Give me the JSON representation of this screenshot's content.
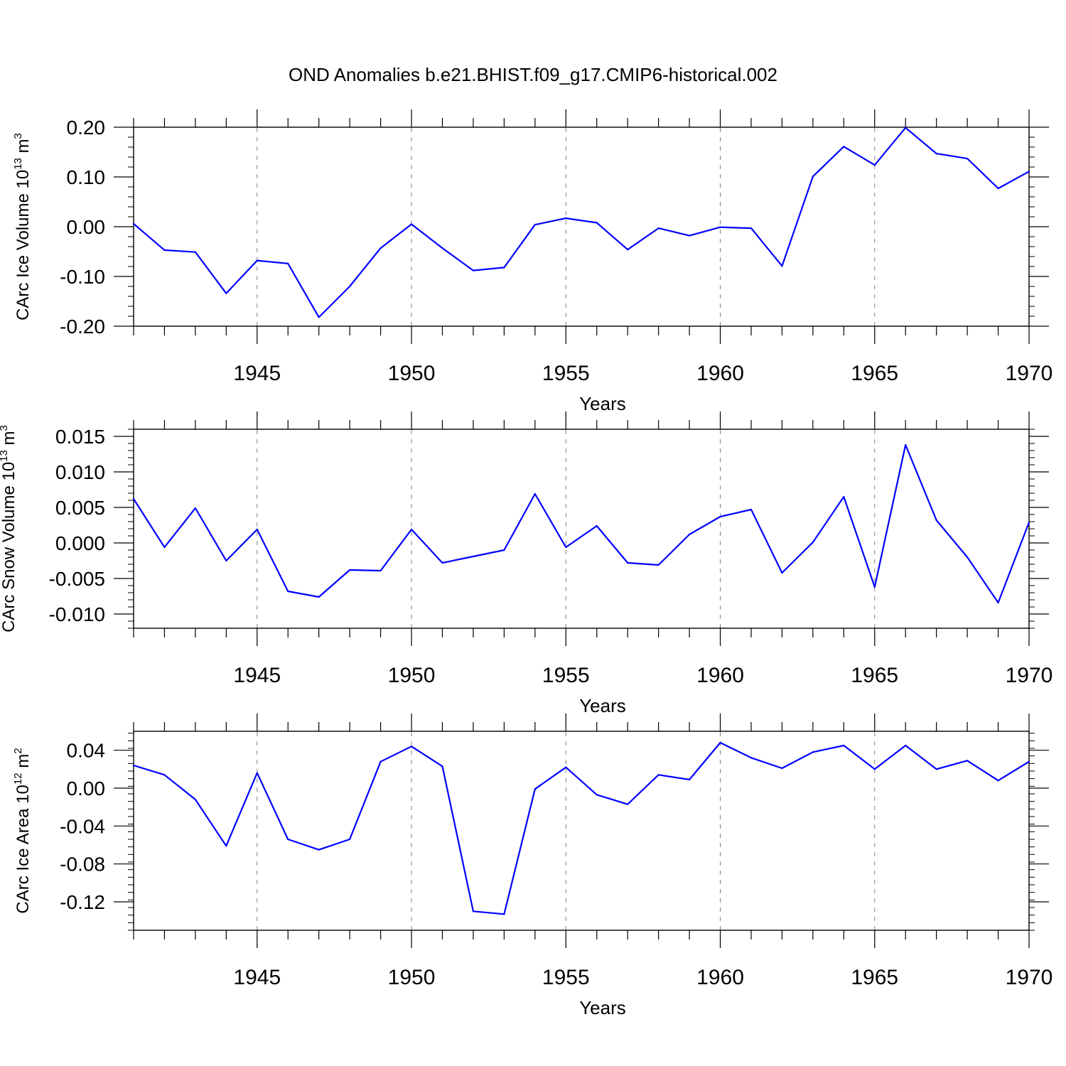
{
  "title": "OND Anomalies b.e21.BHIST.f09_g17.CMIP6-historical.002",
  "colors": {
    "line": "#0000ff",
    "axis": "#000000",
    "grid": "#808080"
  },
  "chart_data": [
    {
      "type": "line",
      "xlabel": "Years",
      "ylabel": {
        "text": "CArc Ice Volume 10",
        "sup": "13",
        "unit": " m",
        "unit_sup": "3"
      },
      "xlim": [
        1941,
        1970
      ],
      "ylim": [
        -0.2,
        0.2
      ],
      "x_ticks": [
        1945,
        1950,
        1955,
        1960,
        1965,
        1970
      ],
      "y_ticks": [
        -0.2,
        -0.1,
        0.0,
        0.1,
        0.2
      ],
      "y_tick_labels": [
        "-0.20",
        "-0.10",
        "0.00",
        "0.10",
        "0.20"
      ],
      "grid": "vertical dashed at major x ticks",
      "series": [
        {
          "x": [
            1941,
            1942,
            1943,
            1944,
            1945,
            1946,
            1947,
            1948,
            1949,
            1950,
            1951,
            1952,
            1953,
            1954,
            1955,
            1956,
            1957,
            1958,
            1959,
            1960,
            1961,
            1962,
            1963,
            1964,
            1965,
            1966,
            1967,
            1968,
            1969,
            1970
          ],
          "values": [
            0.006,
            -0.047,
            -0.051,
            -0.134,
            -0.068,
            -0.074,
            -0.182,
            -0.12,
            -0.043,
            0.005,
            -0.043,
            -0.088,
            -0.082,
            0.004,
            0.017,
            0.008,
            -0.046,
            -0.003,
            -0.018,
            -0.001,
            -0.003,
            -0.079,
            0.101,
            0.161,
            0.124,
            0.199,
            0.147,
            0.137,
            0.077,
            0.111
          ]
        }
      ]
    },
    {
      "type": "line",
      "xlabel": "Years",
      "ylabel": {
        "text": "CArc Snow Volume 10",
        "sup": "13",
        "unit": " m",
        "unit_sup": "3"
      },
      "xlim": [
        1941,
        1970
      ],
      "ylim": [
        -0.012,
        0.016
      ],
      "x_ticks": [
        1945,
        1950,
        1955,
        1960,
        1965,
        1970
      ],
      "y_ticks": [
        -0.01,
        -0.005,
        0.0,
        0.005,
        0.01,
        0.015
      ],
      "y_tick_labels": [
        "-0.010",
        "-0.005",
        "0.000",
        "0.005",
        "0.010",
        "0.015"
      ],
      "grid": "vertical dashed at major x ticks",
      "series": [
        {
          "x": [
            1941,
            1942,
            1943,
            1944,
            1945,
            1946,
            1947,
            1948,
            1949,
            1950,
            1951,
            1952,
            1953,
            1954,
            1955,
            1956,
            1957,
            1958,
            1959,
            1960,
            1961,
            1962,
            1963,
            1964,
            1965,
            1966,
            1967,
            1968,
            1969,
            1970
          ],
          "values": [
            0.0062,
            -0.0006,
            0.0049,
            -0.0025,
            0.0019,
            -0.0068,
            -0.0076,
            -0.0038,
            -0.0039,
            0.0019,
            -0.0028,
            -0.0019,
            -0.001,
            0.0069,
            -0.0006,
            0.0024,
            -0.0028,
            -0.0031,
            0.0012,
            0.0037,
            0.0047,
            -0.0042,
            0.0001,
            0.0065,
            -0.0062,
            0.0138,
            0.0032,
            -0.002,
            -0.0084,
            0.0029
          ]
        }
      ]
    },
    {
      "type": "line",
      "xlabel": "Years",
      "ylabel": {
        "text": "CArc Ice Area 10",
        "sup": "12",
        "unit": " m",
        "unit_sup": "2"
      },
      "xlim": [
        1941,
        1970
      ],
      "ylim": [
        -0.15,
        0.06
      ],
      "x_ticks": [
        1945,
        1950,
        1955,
        1960,
        1965,
        1970
      ],
      "y_ticks": [
        -0.12,
        -0.08,
        -0.04,
        0.0,
        0.04
      ],
      "y_tick_labels": [
        "-0.12",
        "-0.08",
        "-0.04",
        "0.00",
        "0.04"
      ],
      "grid": "vertical dashed at major x ticks",
      "series": [
        {
          "x": [
            1941,
            1942,
            1943,
            1944,
            1945,
            1946,
            1947,
            1948,
            1949,
            1950,
            1951,
            1952,
            1953,
            1954,
            1955,
            1956,
            1957,
            1958,
            1959,
            1960,
            1961,
            1962,
            1963,
            1964,
            1965,
            1966,
            1967,
            1968,
            1969,
            1970
          ],
          "values": [
            0.024,
            0.014,
            -0.012,
            -0.061,
            0.016,
            -0.054,
            -0.065,
            -0.054,
            0.028,
            0.044,
            0.023,
            -0.13,
            -0.133,
            -0.001,
            0.022,
            -0.007,
            -0.017,
            0.014,
            0.009,
            0.048,
            0.032,
            0.021,
            0.038,
            0.045,
            0.02,
            0.045,
            0.02,
            0.029,
            0.008,
            0.028
          ]
        }
      ]
    }
  ]
}
